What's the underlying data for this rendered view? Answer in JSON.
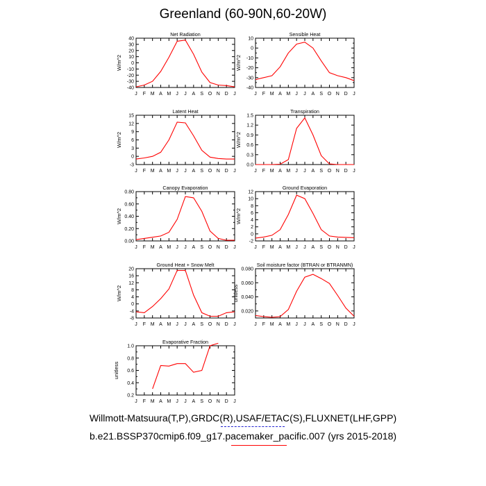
{
  "title": "Greenland (60-90N,60-20W)",
  "month_labels": [
    "J",
    "F",
    "M",
    "A",
    "M",
    "J",
    "J",
    "A",
    "S",
    "O",
    "N",
    "D",
    "J"
  ],
  "footer": {
    "line1": "Willmott-Matsuura(T,P),GRDC(R),USAF/ETAC(S),FLUXNET(LHF,GPP)",
    "line2": "b.e21.BSSP370cmip6.f09_g17.pacemaker_pacific.007 (yrs 2015-2018)"
  },
  "colors": {
    "series": "#ff0000",
    "axis": "#000000",
    "underline_blue": "#2020d0",
    "underline_red": "#ff0000"
  },
  "chart_data": [
    {
      "type": "line",
      "title": "Net Radiation",
      "ylabel": "W/m^2",
      "ylim": [
        -40,
        40
      ],
      "yticks": [
        -40,
        -30,
        -20,
        -10,
        0,
        10,
        20,
        30,
        40
      ],
      "ytick_labels": [
        "-40",
        "-30",
        "-20",
        "-10",
        "0",
        "10",
        "20",
        "30",
        "40"
      ],
      "x": [
        0,
        1,
        2,
        3,
        4,
        5,
        6,
        7,
        8,
        9,
        10,
        11,
        12
      ],
      "series": [
        {
          "values": [
            -39,
            -36,
            -30,
            -14,
            9,
            35,
            37,
            14,
            -15,
            -32,
            -36,
            -37,
            -39
          ]
        }
      ]
    },
    {
      "type": "line",
      "title": "Sensible Heat",
      "ylabel": "W/m^2",
      "ylim": [
        -40,
        10
      ],
      "yticks": [
        -40,
        -30,
        -20,
        -10,
        0,
        10
      ],
      "ytick_labels": [
        "-40",
        "-30",
        "-20",
        "-10",
        "0",
        "10"
      ],
      "minor_yticks": [
        -35,
        -25,
        -15,
        -5,
        5
      ],
      "x": [
        0,
        1,
        2,
        3,
        4,
        5,
        6,
        7,
        8,
        9,
        10,
        11,
        12
      ],
      "series": [
        {
          "values": [
            -32,
            -30,
            -28,
            -19,
            -5,
            4,
            6,
            0,
            -13,
            -25,
            -28,
            -30,
            -33
          ]
        }
      ]
    },
    {
      "type": "line",
      "title": "Latent Heat",
      "ylabel": "W/m^2",
      "ylim": [
        -3,
        15
      ],
      "yticks": [
        -3,
        0,
        3,
        6,
        9,
        12,
        15
      ],
      "ytick_labels": [
        "-3",
        "0",
        "3",
        "6",
        "9",
        "12",
        "15"
      ],
      "x": [
        0,
        1,
        2,
        3,
        4,
        5,
        6,
        7,
        8,
        9,
        10,
        11,
        12
      ],
      "series": [
        {
          "values": [
            -1,
            -0.6,
            0,
            1.5,
            6,
            12.5,
            12.2,
            7.5,
            2.2,
            -0.3,
            -0.8,
            -1,
            -1
          ]
        }
      ]
    },
    {
      "type": "line",
      "title": "Transpiration",
      "ylabel": "W/m^2",
      "ylim": [
        0,
        1.5
      ],
      "yticks": [
        0,
        0.3,
        0.6,
        0.9,
        1.2,
        1.5
      ],
      "ytick_labels": [
        "0.0",
        "0.3",
        "0.6",
        "0.9",
        "1.2",
        "1.5"
      ],
      "x": [
        0,
        1,
        2,
        3,
        4,
        5,
        6,
        7,
        8,
        9,
        10,
        11,
        12
      ],
      "series": [
        {
          "values": [
            0,
            0,
            0,
            0.01,
            0.15,
            1.1,
            1.42,
            0.9,
            0.27,
            0.02,
            0,
            0,
            0
          ]
        }
      ]
    },
    {
      "type": "line",
      "title": "Canopy Evaporation",
      "ylabel": "W/m^2",
      "ylim": [
        0,
        0.8
      ],
      "yticks": [
        0,
        0.2,
        0.4,
        0.6,
        0.8
      ],
      "ytick_labels": [
        "0.00",
        "0.20",
        "0.40",
        "0.60",
        "0.80"
      ],
      "minor_yticks": [
        0.1,
        0.3,
        0.5,
        0.7
      ],
      "x": [
        0,
        1,
        2,
        3,
        4,
        5,
        6,
        7,
        8,
        9,
        10,
        11,
        12
      ],
      "series": [
        {
          "values": [
            0.02,
            0.04,
            0.06,
            0.08,
            0.14,
            0.35,
            0.72,
            0.7,
            0.48,
            0.16,
            0.04,
            0.01,
            0.01
          ]
        }
      ]
    },
    {
      "type": "line",
      "title": "Ground Evaporation",
      "ylabel": "W/m^2",
      "ylim": [
        -2,
        12
      ],
      "yticks": [
        -2,
        0,
        2,
        4,
        6,
        8,
        10,
        12
      ],
      "ytick_labels": [
        "-2",
        "0",
        "2",
        "4",
        "6",
        "8",
        "10",
        "12"
      ],
      "x": [
        0,
        1,
        2,
        3,
        4,
        5,
        6,
        7,
        8,
        9,
        10,
        11,
        12
      ],
      "series": [
        {
          "values": [
            -1.2,
            -0.9,
            -0.4,
            1.2,
            5.5,
            11,
            10,
            5.8,
            1.2,
            -0.6,
            -0.9,
            -1,
            -1.1
          ]
        }
      ]
    },
    {
      "type": "line",
      "title": "Ground Heat + Snow Melt",
      "ylabel": "W/m^2",
      "ylim": [
        -8,
        20
      ],
      "yticks": [
        -8,
        -4,
        0,
        4,
        8,
        12,
        16,
        20
      ],
      "ytick_labels": [
        "-8",
        "-4",
        "0",
        "4",
        "8",
        "12",
        "16",
        "20"
      ],
      "x": [
        0,
        1,
        2,
        3,
        4,
        5,
        6,
        7,
        8,
        9,
        10,
        11,
        12
      ],
      "series": [
        {
          "values": [
            -4.5,
            -5,
            -1.5,
            3,
            8.5,
            19,
            19,
            5,
            -5,
            -7,
            -7,
            -5,
            -4.5
          ]
        }
      ]
    },
    {
      "type": "line",
      "title": "Soil moisture factor (BTRAN or BTRANMN)",
      "ylabel": "unitless",
      "ylim": [
        0.01,
        0.08
      ],
      "yticks": [
        0.02,
        0.04,
        0.06,
        0.08
      ],
      "ytick_labels": [
        "0.020",
        "0.040",
        "0.060",
        "0.080"
      ],
      "minor_yticks": [
        0.01,
        0.03,
        0.05,
        0.07
      ],
      "x": [
        0,
        1,
        2,
        3,
        4,
        5,
        6,
        7,
        8,
        9,
        10,
        11,
        12
      ],
      "series": [
        {
          "values": [
            0.0135,
            0.012,
            0.011,
            0.012,
            0.022,
            0.048,
            0.068,
            0.072,
            0.066,
            0.059,
            0.042,
            0.024,
            0.0125
          ]
        }
      ]
    },
    {
      "type": "line",
      "title": "Evaporative Fraction",
      "ylabel": "unitless",
      "ylim": [
        0.2,
        1.0
      ],
      "yticks": [
        0.2,
        0.4,
        0.6,
        0.8,
        1.0
      ],
      "ytick_labels": [
        "0.2",
        "0.4",
        "0.6",
        "0.8",
        "1.0"
      ],
      "minor_yticks": [
        0.3,
        0.5,
        0.7,
        0.9
      ],
      "x": [
        2,
        3,
        4,
        5,
        6,
        7,
        8,
        9,
        10
      ],
      "series": [
        {
          "values": [
            0.3,
            0.68,
            0.67,
            0.71,
            0.71,
            0.57,
            0.6,
            1.0,
            1.04
          ]
        }
      ]
    }
  ]
}
